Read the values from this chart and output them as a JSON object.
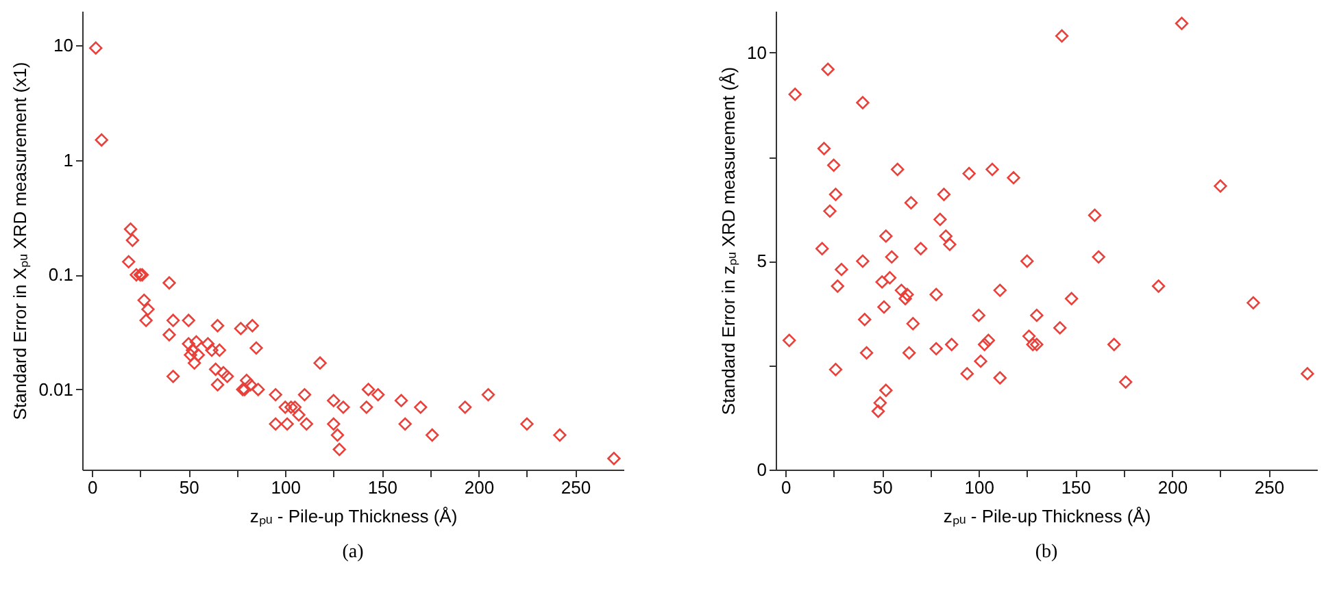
{
  "chart_data": [
    {
      "type": "scatter",
      "xlabel": "zₚᵤ - Pile-up Thickness (Å)",
      "ylabel": "Standard Error in Xₚᵤ XRD measurement (x1)",
      "annotations": [
        "(a)"
      ],
      "color": "#e8403a",
      "marker": "diamond",
      "log": "y",
      "grid": false,
      "xlim": [
        -5,
        275
      ],
      "xticks": [
        0,
        {
          "value": 25,
          "label": null
        },
        50,
        {
          "value": 75,
          "label": null
        },
        100,
        {
          "value": 125,
          "label": null
        },
        150,
        {
          "value": 175,
          "label": null
        },
        200,
        {
          "value": 225,
          "label": null
        },
        250
      ],
      "ylim": [
        0.002,
        20
      ],
      "yticks": [
        0.01,
        0.1,
        1,
        10
      ],
      "x": [
        2,
        5,
        20,
        21,
        19,
        23,
        25,
        26,
        27,
        29,
        28,
        40,
        40,
        42,
        42,
        50,
        50,
        51,
        52,
        53,
        54,
        55,
        60,
        62,
        64,
        65,
        65,
        66,
        68,
        70,
        77,
        78,
        79,
        80,
        82,
        83,
        85,
        86,
        95,
        95,
        100,
        101,
        103,
        105,
        107,
        110,
        111,
        118,
        125,
        125,
        127,
        128,
        130,
        143,
        142,
        148,
        160,
        162,
        170,
        176,
        193,
        205,
        225,
        242,
        270
      ],
      "values": [
        9.5,
        1.5,
        0.25,
        0.2,
        0.13,
        0.1,
        0.1,
        0.1,
        0.06,
        0.05,
        0.04,
        0.085,
        0.03,
        0.04,
        0.013,
        0.04,
        0.025,
        0.02,
        0.022,
        0.017,
        0.026,
        0.02,
        0.025,
        0.022,
        0.015,
        0.036,
        0.011,
        0.022,
        0.014,
        0.013,
        0.034,
        0.01,
        0.01,
        0.012,
        0.011,
        0.036,
        0.023,
        0.01,
        0.009,
        0.005,
        0.007,
        0.005,
        0.007,
        0.007,
        0.006,
        0.009,
        0.005,
        0.017,
        0.008,
        0.005,
        0.004,
        0.003,
        0.007,
        0.01,
        0.007,
        0.009,
        0.008,
        0.005,
        0.007,
        0.004,
        0.007,
        0.009,
        0.005,
        0.004,
        0.0025
      ]
    },
    {
      "type": "scatter",
      "xlabel": "zₚᵤ - Pile-up Thickness (Å)",
      "ylabel": "Standard Error in zₚᵤ XRD measurement (Å)",
      "annotations": [
        "(b)"
      ],
      "color": "#e8403a",
      "marker": "diamond",
      "grid": false,
      "xlim": [
        -5,
        275
      ],
      "xticks": [
        0,
        {
          "value": 25,
          "label": null
        },
        50,
        {
          "value": 75,
          "label": null
        },
        100,
        {
          "value": 125,
          "label": null
        },
        150,
        {
          "value": 175,
          "label": null
        },
        200,
        {
          "value": 225,
          "label": null
        },
        250
      ],
      "ylim": [
        0,
        11
      ],
      "yticks": [
        0,
        {
          "value": 2.5,
          "label": null
        },
        5,
        {
          "value": 7.5,
          "label": null
        },
        10
      ],
      "x": [
        2,
        5,
        20,
        22,
        19,
        23,
        25,
        26,
        26,
        27,
        29,
        40,
        40,
        41,
        42,
        48,
        49,
        50,
        51,
        52,
        52,
        54,
        55,
        58,
        60,
        62,
        63,
        64,
        65,
        66,
        70,
        78,
        78,
        80,
        82,
        83,
        85,
        86,
        94,
        95,
        100,
        101,
        103,
        105,
        107,
        111,
        111,
        118,
        125,
        126,
        128,
        130,
        130,
        142,
        143,
        148,
        160,
        162,
        170,
        176,
        193,
        205,
        225,
        242,
        270
      ],
      "values": [
        3.1,
        9.0,
        7.7,
        9.6,
        5.3,
        6.2,
        7.3,
        6.6,
        2.4,
        4.4,
        4.8,
        8.8,
        5.0,
        3.6,
        2.8,
        1.4,
        1.6,
        4.5,
        3.9,
        5.6,
        1.9,
        4.6,
        5.1,
        7.2,
        4.3,
        4.1,
        4.2,
        2.8,
        6.4,
        3.5,
        5.3,
        4.2,
        2.9,
        6.0,
        6.6,
        5.6,
        5.4,
        3.0,
        2.3,
        7.1,
        3.7,
        2.6,
        3.0,
        3.1,
        7.2,
        4.3,
        2.2,
        7.0,
        5.0,
        3.2,
        3.0,
        3.7,
        3.0,
        3.4,
        10.4,
        4.1,
        6.1,
        5.1,
        3.0,
        2.1,
        4.4,
        10.7,
        6.8,
        4.0,
        2.3
      ]
    }
  ]
}
